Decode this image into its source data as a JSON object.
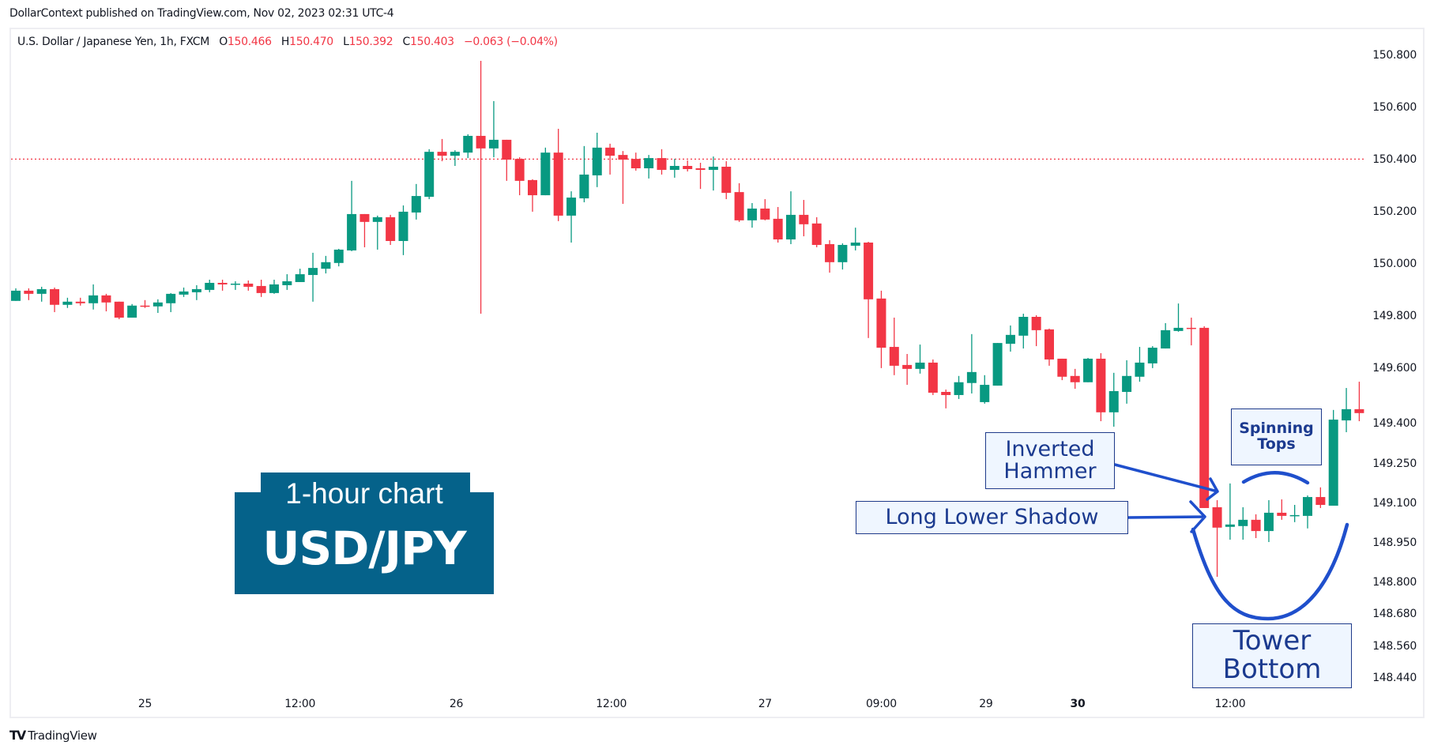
{
  "header": {
    "publisher_line": "DollarContext published on TradingView.com, Nov 02, 2023 02:31 UTC-4"
  },
  "legend": {
    "symbol": "U.S. Dollar / Japanese Yen, 1h, FXCM",
    "open_label": "O",
    "open": "150.466",
    "high_label": "H",
    "high": "150.470",
    "low_label": "L",
    "low": "150.392",
    "close_label": "C",
    "close": "150.403",
    "change": "−0.063 (−0.04%)"
  },
  "title_box": {
    "subtitle": "1-hour chart",
    "title": "USD/JPY",
    "color": "#05628a"
  },
  "annotations": {
    "inverted_hammer": "Inverted\nHammer",
    "long_lower_shadow": "Long Lower Shadow",
    "spinning_tops": "Spinning\nTops",
    "tower_bottom": "Tower\nBottom",
    "line_color": "#1f4fcc"
  },
  "footer": {
    "brand": "TradingView",
    "logo_glyph": "TV"
  },
  "colors": {
    "up": "#089981",
    "down": "#f23645",
    "price_line": "#f23645"
  },
  "chart_data": {
    "type": "candlestick",
    "title": "U.S. Dollar / Japanese Yen, 1h, FXCM",
    "xlabel": "",
    "ylabel": "",
    "ylim": [
      148.38,
      150.87
    ],
    "grid": false,
    "legend_position": "top-left",
    "current_price_line": 150.403,
    "y_ticks": [
      "150.800",
      "150.600",
      "150.400",
      "150.200",
      "150.000",
      "149.800",
      "149.600",
      "149.400",
      "149.250",
      "149.100",
      "148.950",
      "148.800",
      "148.680",
      "148.560",
      "148.440"
    ],
    "y_tick_values": [
      150.8,
      150.6,
      150.4,
      150.2,
      150.0,
      149.8,
      149.6,
      149.4,
      149.25,
      149.1,
      148.95,
      148.8,
      148.68,
      148.56,
      148.44
    ],
    "x_ticks": [
      {
        "label": "25",
        "index": 10.0,
        "bold": false
      },
      {
        "label": "12:00",
        "index": 22.0,
        "bold": false
      },
      {
        "label": "26",
        "index": 34.1,
        "bold": false
      },
      {
        "label": "12:00",
        "index": 46.1,
        "bold": false
      },
      {
        "label": "27",
        "index": 58.0,
        "bold": false
      },
      {
        "label": "09:00",
        "index": 67.0,
        "bold": false
      },
      {
        "label": "29",
        "index": 75.1,
        "bold": false
      },
      {
        "label": "30",
        "index": 82.2,
        "bold": true
      },
      {
        "label": "12:00",
        "index": 94.0,
        "bold": false
      }
    ],
    "candle_fields": [
      "open",
      "high",
      "low",
      "close"
    ],
    "candles": [
      [
        149.861,
        149.909,
        149.861,
        149.9
      ],
      [
        149.9,
        149.909,
        149.864,
        149.888
      ],
      [
        149.888,
        149.915,
        149.858,
        149.906
      ],
      [
        149.906,
        149.912,
        149.818,
        149.846
      ],
      [
        149.846,
        149.873,
        149.834,
        149.858
      ],
      [
        149.858,
        149.873,
        149.843,
        149.852
      ],
      [
        149.852,
        149.924,
        149.828,
        149.882
      ],
      [
        149.882,
        149.888,
        149.821,
        149.855
      ],
      [
        149.858,
        149.858,
        149.791,
        149.797
      ],
      [
        149.797,
        149.849,
        149.797,
        149.843
      ],
      [
        149.843,
        149.864,
        149.834,
        149.84
      ],
      [
        149.84,
        149.867,
        149.815,
        149.855
      ],
      [
        149.852,
        149.891,
        149.818,
        149.888
      ],
      [
        149.885,
        149.912,
        149.876,
        149.897
      ],
      [
        149.894,
        149.921,
        149.864,
        149.906
      ],
      [
        149.903,
        149.942,
        149.894,
        149.93
      ],
      [
        149.93,
        149.942,
        149.9,
        149.924
      ],
      [
        149.924,
        149.936,
        149.903,
        149.927
      ],
      [
        149.927,
        149.939,
        149.9,
        149.915
      ],
      [
        149.918,
        149.942,
        149.876,
        149.891
      ],
      [
        149.891,
        149.942,
        149.888,
        149.924
      ],
      [
        149.921,
        149.963,
        149.903,
        149.936
      ],
      [
        149.933,
        149.984,
        149.933,
        149.963
      ],
      [
        149.96,
        150.045,
        149.858,
        149.987
      ],
      [
        149.984,
        150.033,
        149.966,
        150.009
      ],
      [
        150.006,
        150.06,
        149.993,
        150.057
      ],
      [
        150.054,
        150.32,
        150.051,
        150.193
      ],
      [
        150.193,
        150.193,
        150.066,
        150.163
      ],
      [
        150.163,
        150.187,
        150.057,
        150.181
      ],
      [
        150.181,
        150.19,
        150.075,
        150.09
      ],
      [
        150.09,
        150.226,
        150.036,
        150.202
      ],
      [
        150.199,
        150.308,
        150.172,
        150.262
      ],
      [
        150.259,
        150.441,
        150.25,
        150.431
      ],
      [
        150.431,
        150.48,
        150.395,
        150.416
      ],
      [
        150.416,
        150.437,
        150.377,
        150.431
      ],
      [
        150.428,
        150.498,
        150.407,
        150.492
      ],
      [
        150.492,
        150.779,
        149.812,
        150.444
      ],
      [
        150.444,
        150.625,
        150.41,
        150.477
      ],
      [
        150.477,
        150.477,
        150.32,
        150.401
      ],
      [
        150.404,
        150.41,
        150.265,
        150.32
      ],
      [
        150.323,
        150.326,
        150.202,
        150.265
      ],
      [
        150.265,
        150.447,
        150.265,
        150.428
      ],
      [
        150.428,
        150.519,
        150.166,
        150.187
      ],
      [
        150.187,
        150.28,
        150.084,
        150.256
      ],
      [
        150.253,
        150.453,
        150.238,
        150.344
      ],
      [
        150.341,
        150.504,
        150.296,
        150.447
      ],
      [
        150.447,
        150.462,
        150.344,
        150.416
      ],
      [
        150.419,
        150.434,
        150.232,
        150.401
      ],
      [
        150.404,
        150.428,
        150.359,
        150.368
      ],
      [
        150.368,
        150.419,
        150.329,
        150.407
      ],
      [
        150.407,
        150.441,
        150.344,
        150.362
      ],
      [
        150.362,
        150.404,
        150.332,
        150.377
      ],
      [
        150.377,
        150.398,
        150.356,
        150.365
      ],
      [
        150.368,
        150.389,
        150.289,
        150.362
      ],
      [
        150.362,
        150.413,
        150.283,
        150.374
      ],
      [
        150.374,
        150.395,
        150.25,
        150.274
      ],
      [
        150.277,
        150.311,
        150.163,
        150.169
      ],
      [
        150.169,
        150.235,
        150.141,
        150.214
      ],
      [
        150.214,
        150.25,
        150.169,
        150.172
      ],
      [
        150.175,
        150.22,
        150.084,
        150.096
      ],
      [
        150.096,
        150.28,
        150.078,
        150.19
      ],
      [
        150.19,
        150.247,
        150.108,
        150.154
      ],
      [
        150.157,
        150.181,
        150.066,
        150.075
      ],
      [
        150.078,
        150.093,
        149.969,
        150.009
      ],
      [
        150.009,
        150.081,
        149.981,
        150.075
      ],
      [
        150.072,
        150.141,
        150.054,
        150.084
      ],
      [
        150.084,
        150.087,
        149.719,
        149.867
      ],
      [
        149.87,
        149.9,
        149.604,
        149.682
      ],
      [
        149.685,
        149.797,
        149.577,
        149.613
      ],
      [
        149.616,
        149.658,
        149.54,
        149.601
      ],
      [
        149.601,
        149.694,
        149.583,
        149.625
      ],
      [
        149.625,
        149.637,
        149.501,
        149.51
      ],
      [
        149.513,
        149.522,
        149.45,
        149.501
      ],
      [
        149.501,
        149.574,
        149.486,
        149.55
      ],
      [
        149.547,
        149.734,
        149.507,
        149.589
      ],
      [
        149.474,
        149.577,
        149.468,
        149.54
      ],
      [
        149.537,
        149.7,
        149.537,
        149.7
      ],
      [
        149.697,
        149.767,
        149.667,
        149.731
      ],
      [
        149.728,
        149.812,
        149.679,
        149.8
      ],
      [
        149.8,
        149.806,
        149.688,
        149.749
      ],
      [
        149.752,
        149.755,
        149.613,
        149.637
      ],
      [
        149.64,
        149.64,
        149.558,
        149.571
      ],
      [
        149.574,
        149.601,
        149.525,
        149.55
      ],
      [
        149.55,
        149.643,
        149.55,
        149.64
      ],
      [
        149.64,
        149.661,
        149.401,
        149.435
      ],
      [
        149.435,
        149.586,
        149.38,
        149.516
      ],
      [
        149.513,
        149.634,
        149.468,
        149.574
      ],
      [
        149.571,
        149.685,
        149.552,
        149.625
      ],
      [
        149.622,
        149.688,
        149.604,
        149.682
      ],
      [
        149.679,
        149.776,
        149.679,
        149.749
      ],
      [
        149.746,
        149.851,
        149.743,
        149.758
      ],
      [
        149.758,
        149.797,
        149.691,
        149.755
      ],
      [
        149.758,
        149.764,
        149.069,
        149.069
      ],
      [
        149.072,
        149.099,
        148.806,
        148.994
      ],
      [
        148.997,
        149.163,
        148.948,
        149.006
      ],
      [
        149.0,
        149.072,
        148.948,
        149.024
      ],
      [
        149.024,
        149.045,
        148.954,
        148.981
      ],
      [
        148.981,
        149.099,
        148.939,
        149.051
      ],
      [
        149.051,
        149.102,
        149.024,
        149.039
      ],
      [
        149.039,
        149.081,
        149.015,
        149.042
      ],
      [
        149.039,
        149.117,
        148.991,
        149.111
      ],
      [
        149.111,
        149.148,
        149.069,
        149.081
      ],
      [
        149.078,
        149.444,
        149.078,
        149.407
      ],
      [
        149.404,
        149.528,
        149.359,
        149.447
      ],
      [
        149.447,
        149.552,
        149.401,
        149.432
      ]
    ],
    "annotations": [
      "Inverted Hammer",
      "Long Lower Shadow",
      "Spinning Tops",
      "Tower Bottom",
      "1-hour chart",
      "USD/JPY"
    ]
  }
}
